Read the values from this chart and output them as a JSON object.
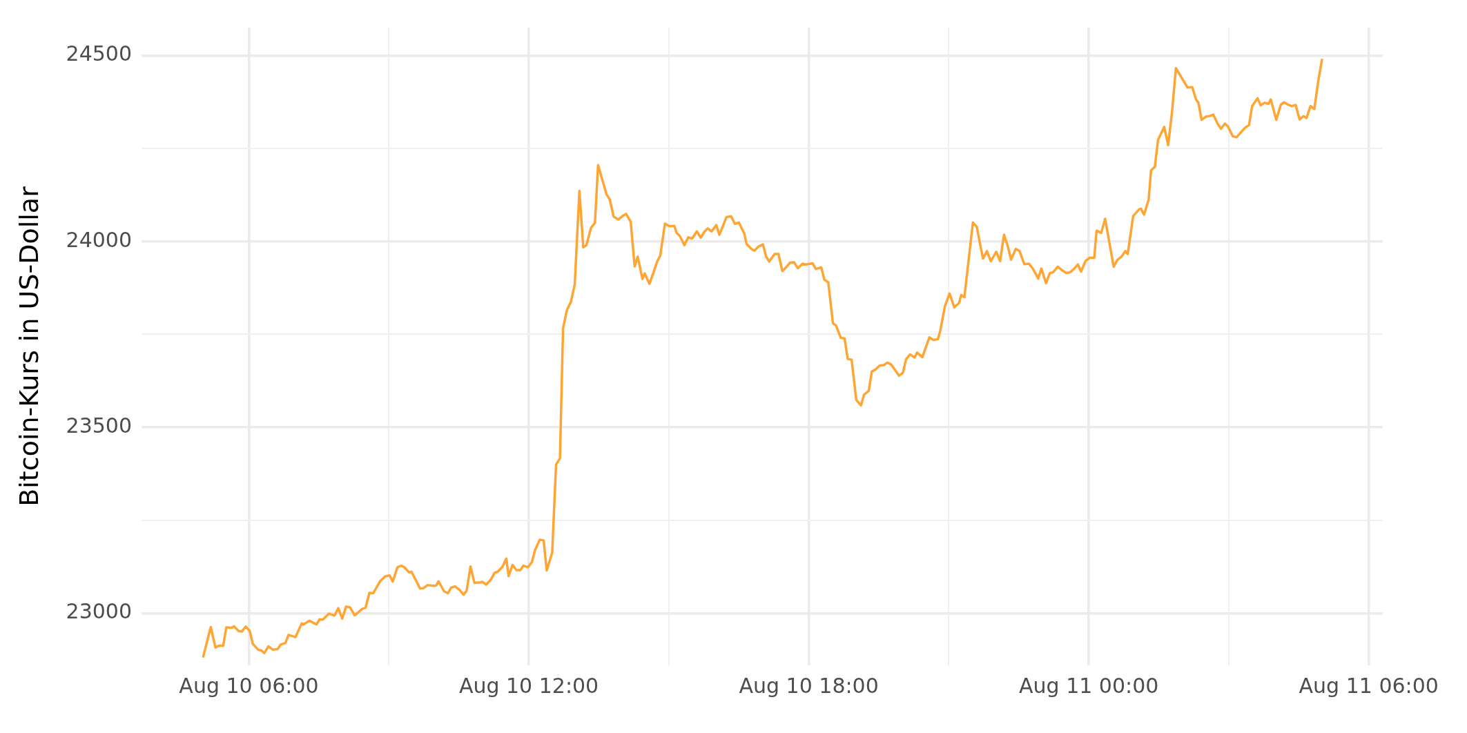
{
  "chart_data": {
    "type": "line",
    "ylabel": "Bitcoin-Kurs in US-Dollar",
    "xlim": [
      "--08-10T03:42",
      "--08-11T06:18"
    ],
    "ylim": [
      22860,
      24575
    ],
    "xticks": [
      {
        "value": "--08-10T06:00",
        "label": "Aug 10 06:00"
      },
      {
        "value": "--08-10T09:00",
        "label": null
      },
      {
        "value": "--08-10T12:00",
        "label": "Aug 10 12:00"
      },
      {
        "value": "--08-10T15:00",
        "label": null
      },
      {
        "value": "--08-10T18:00",
        "label": "Aug 10 18:00"
      },
      {
        "value": "--08-10T21:00",
        "label": null
      },
      {
        "value": "--08-11T00:00",
        "label": "Aug 11 00:00"
      },
      {
        "value": "--08-11T03:00",
        "label": null
      },
      {
        "value": "--08-11T06:00",
        "label": "Aug 11 06:00"
      }
    ],
    "yticks": [
      23000,
      {
        "value": 23250,
        "label": null
      },
      23500,
      {
        "value": 23750,
        "label": null
      },
      24000,
      {
        "value": 24250,
        "label": null
      },
      24500
    ],
    "grid": true,
    "legend": false,
    "marker": "none",
    "line_style": "solid",
    "series": [
      {
        "color": "#ffa533",
        "x": [
          "--08-10T05:01",
          "--08-10T05:11",
          "--08-10T05:17",
          "--08-10T05:22",
          "--08-10T05:27",
          "--08-10T05:31",
          "--08-10T05:38",
          "--08-10T05:41",
          "--08-10T05:47",
          "--08-10T05:51",
          "--08-10T05:56",
          "--08-10T06:01",
          "--08-10T06:05",
          "--08-10T06:12",
          "--08-10T06:16",
          "--08-10T06:20",
          "--08-10T06:25",
          "--08-10T06:31",
          "--08-10T06:37",
          "--08-10T06:41",
          "--08-10T06:47",
          "--08-10T06:51",
          "--08-10T07:00",
          "--08-10T07:08",
          "--08-10T07:10",
          "--08-10T07:18",
          "--08-10T07:27",
          "--08-10T07:31",
          "--08-10T07:35",
          "--08-10T07:43",
          "--08-10T07:50",
          "--08-10T07:55",
          "--08-10T08:00",
          "--08-10T08:05",
          "--08-10T08:10",
          "--08-10T08:16",
          "--08-10T08:20",
          "--08-10T08:25",
          "--08-10T08:30",
          "--08-10T08:35",
          "--08-10T08:40",
          "--08-10T08:49",
          "--08-10T08:55",
          "--08-10T09:01",
          "--08-10T09:05",
          "--08-10T09:11",
          "--08-10T09:16",
          "--08-10T09:20",
          "--08-10T09:26",
          "--08-10T09:29",
          "--08-10T09:35",
          "--08-10T09:40",
          "--08-10T09:44",
          "--08-10T09:50",
          "--08-10T09:57",
          "--08-10T10:01",
          "--08-10T10:04",
          "--08-10T10:11",
          "--08-10T10:16",
          "--08-10T10:20",
          "--08-10T10:25",
          "--08-10T10:31",
          "--08-10T10:36",
          "--08-10T10:40",
          "--08-10T10:45",
          "--08-10T10:50",
          "--08-10T10:58",
          "--08-10T11:00",
          "--08-10T11:05",
          "--08-10T11:11",
          "--08-10T11:16",
          "--08-10T11:20",
          "--08-10T11:26",
          "--08-10T11:31",
          "--08-10T11:34",
          "--08-10T11:39",
          "--08-10T11:44",
          "--08-10T11:49",
          "--08-10T11:53",
          "--08-10T11:59",
          "--08-10T12:04",
          "--08-10T12:08",
          "--08-10T12:14",
          "--08-10T12:19",
          "--08-10T12:23",
          "--08-10T12:30",
          "--08-10T12:35",
          "--08-10T12:40",
          "--08-10T12:44",
          "--08-10T12:49",
          "--08-10T12:54",
          "--08-10T12:59",
          "--08-10T13:05",
          "--08-10T13:10",
          "--08-10T13:14",
          "--08-10T13:20",
          "--08-10T13:25",
          "--08-10T13:29",
          "--08-10T13:40",
          "--08-10T13:44",
          "--08-10T13:49",
          "--08-10T13:55",
          "--08-10T14:01",
          "--08-10T14:05",
          "--08-10T14:11",
          "--08-10T14:16",
          "--08-10T14:20",
          "--08-10T14:26",
          "--08-10T14:29",
          "--08-10T14:35",
          "--08-10T14:40",
          "--08-10T14:45",
          "--08-10T14:49",
          "--08-10T14:55",
          "--08-10T15:01",
          "--08-10T15:07",
          "--08-10T15:10",
          "--08-10T15:14",
          "--08-10T15:20",
          "--08-10T15:25",
          "--08-10T15:30",
          "--08-10T15:36",
          "--08-10T15:41",
          "--08-10T15:46",
          "--08-10T15:50",
          "--08-10T15:55",
          "--08-10T16:01",
          "--08-10T16:05",
          "--08-10T16:14",
          "--08-10T16:20",
          "--08-10T16:25",
          "--08-10T16:30",
          "--08-10T16:37",
          "--08-10T16:40",
          "--08-10T16:46",
          "--08-10T16:50",
          "--08-10T16:55",
          "--08-10T17:01",
          "--08-10T17:05",
          "--08-10T17:09",
          "--08-10T17:16",
          "--08-10T17:21",
          "--08-10T17:26",
          "--08-10T17:31",
          "--08-10T17:36",
          "--08-10T17:41",
          "--08-10T17:46",
          "--08-10T17:52",
          "--08-10T17:56",
          "--08-10T18:05",
          "--08-10T18:09",
          "--08-10T18:16",
          "--08-10T18:20",
          "--08-10T18:25",
          "--08-10T18:31",
          "--08-10T18:35",
          "--08-10T18:41",
          "--08-10T18:46",
          "--08-10T18:50",
          "--08-10T18:55",
          "--08-10T19:01",
          "--08-10T19:07",
          "--08-10T19:11",
          "--08-10T19:17",
          "--08-10T19:21",
          "--08-10T19:26",
          "--08-10T19:31",
          "--08-10T19:37",
          "--08-10T19:41",
          "--08-10T19:46",
          "--08-10T19:51",
          "--08-10T19:56",
          "--08-10T20:01",
          "--08-10T20:05",
          "--08-10T20:10",
          "--08-10T20:16",
          "--08-10T20:19",
          "--08-10T20:26",
          "--08-10T20:35",
          "--08-10T20:40",
          "--08-10T20:46",
          "--08-10T20:49",
          "--08-10T20:55",
          "--08-10T21:01",
          "--08-10T21:07",
          "--08-10T21:13",
          "--08-10T21:16",
          "--08-10T21:20",
          "--08-10T21:31",
          "--08-10T21:36",
          "--08-10T21:40",
          "--08-10T21:44",
          "--08-10T21:49",
          "--08-10T21:54",
          "--08-10T22:01",
          "--08-10T22:06",
          "--08-10T22:11",
          "--08-10T22:16",
          "--08-10T22:20",
          "--08-10T22:26",
          "--08-10T22:31",
          "--08-10T22:37",
          "--08-10T22:43",
          "--08-10T22:48",
          "--08-10T22:55",
          "--08-10T22:59",
          "--08-10T23:05",
          "--08-10T23:10",
          "--08-10T23:14",
          "--08-10T23:20",
          "--08-10T23:26",
          "--08-10T23:31",
          "--08-10T23:36",
          "--08-10T23:41",
          "--08-10T23:46",
          "--08-10T23:50",
          "--08-10T23:56",
          "--08-11T00:01",
          "--08-11T00:07",
          "--08-11T00:10",
          "--08-11T00:16",
          "--08-11T00:21",
          "--08-11T00:27",
          "--08-11T00:32",
          "--08-11T00:37",
          "--08-11T00:42",
          "--08-11T00:47",
          "--08-11T00:50",
          "--08-11T00:57",
          "--08-11T01:05",
          "--08-11T01:07",
          "--08-11T01:11",
          "--08-11T01:17",
          "--08-11T01:20",
          "--08-11T01:25",
          "--08-11T01:29",
          "--08-11T01:37",
          "--08-11T01:42",
          "--08-11T01:47",
          "--08-11T01:52",
          "--08-11T02:00",
          "--08-11T02:07",
          "--08-11T02:13",
          "--08-11T02:18",
          "--08-11T02:21",
          "--08-11T02:25",
          "--08-11T02:31",
          "--08-11T02:35",
          "--08-11T02:40",
          "--08-11T02:46",
          "--08-11T02:50",
          "--08-11T02:55",
          "--08-11T02:59",
          "--08-11T03:05",
          "--08-11T03:10",
          "--08-11T03:21",
          "--08-11T03:26",
          "--08-11T03:30",
          "--08-11T03:37",
          "--08-11T03:41",
          "--08-11T03:46",
          "--08-11T03:51",
          "--08-11T03:54",
          "--08-11T04:01",
          "--08-11T04:07",
          "--08-11T04:11",
          "--08-11T04:16",
          "--08-11T04:21",
          "--08-11T04:26",
          "--08-11T04:31",
          "--08-11T04:36",
          "--08-11T04:40",
          "--08-11T04:45",
          "--08-11T04:50",
          "--08-11T04:55",
          "--08-11T05:00"
        ],
        "values": [
          22881,
          22963,
          22908,
          22913,
          22913,
          22962,
          22961,
          22965,
          22952,
          22951,
          22964,
          22953,
          22918,
          22902,
          22900,
          22893,
          22911,
          22902,
          22904,
          22916,
          22920,
          22942,
          22936,
          22973,
          22970,
          22980,
          22970,
          22984,
          22983,
          22999,
          22994,
          23014,
          22986,
          23018,
          23016,
          22995,
          23001,
          23011,
          23015,
          23055,
          23054,
          23087,
          23099,
          23102,
          23085,
          23124,
          23128,
          23124,
          23110,
          23112,
          23088,
          23067,
          23067,
          23076,
          23074,
          23075,
          23086,
          23059,
          23054,
          23069,
          23072,
          23063,
          23050,
          23061,
          23126,
          23082,
          23083,
          23085,
          23077,
          23090,
          23109,
          23112,
          23125,
          23147,
          23100,
          23130,
          23116,
          23116,
          23128,
          23124,
          23138,
          23170,
          23198,
          23196,
          23115,
          23163,
          23400,
          23417,
          23766,
          23816,
          23837,
          23884,
          24136,
          23984,
          23990,
          24037,
          24050,
          24205,
          24126,
          24113,
          24067,
          24059,
          24069,
          24074,
          24053,
          23933,
          23959,
          23899,
          23914,
          23886,
          23915,
          23946,
          23962,
          24048,
          24041,
          24042,
          24023,
          24015,
          23990,
          24011,
          24008,
          24027,
          24010,
          24027,
          24035,
          24027,
          24044,
          24018,
          24065,
          24068,
          24047,
          24051,
          24021,
          23993,
          23980,
          23975,
          23986,
          23992,
          23960,
          23946,
          23966,
          23966,
          23920,
          23931,
          23943,
          23944,
          23928,
          23940,
          23938,
          23941,
          23926,
          23930,
          23897,
          23890,
          23780,
          23774,
          23741,
          23739,
          23684,
          23682,
          23574,
          23559,
          23588,
          23598,
          23650,
          23656,
          23666,
          23668,
          23674,
          23669,
          23654,
          23639,
          23647,
          23683,
          23696,
          23688,
          23701,
          23689,
          23742,
          23735,
          23737,
          23760,
          23826,
          23860,
          23823,
          23834,
          23856,
          23850,
          24051,
          24039,
          23995,
          23954,
          23974,
          23947,
          23972,
          23947,
          24018,
          23986,
          23951,
          23980,
          23974,
          23939,
          23940,
          23927,
          23900,
          23927,
          23888,
          23915,
          23917,
          23932,
          23922,
          23915,
          23917,
          23926,
          23938,
          23919,
          23948,
          23956,
          23956,
          24029,
          24023,
          24061,
          23990,
          23932,
          23951,
          23959,
          23974,
          23966,
          24068,
          24087,
          24088,
          24072,
          24113,
          24191,
          24201,
          24273,
          24308,
          24259,
          24348,
          24466,
          24438,
          24414,
          24415,
          24381,
          24373,
          24327,
          24336,
          24337,
          24341,
          24315,
          24303,
          24317,
          24309,
          24283,
          24280,
          24306,
          24313,
          24364,
          24385,
          24366,
          24373,
          24370,
          24382,
          24327,
          24368,
          24374,
          24368,
          24364,
          24367,
          24328,
          24337,
          24332,
          24364,
          24356,
          24431,
          24491
        ]
      }
    ]
  }
}
